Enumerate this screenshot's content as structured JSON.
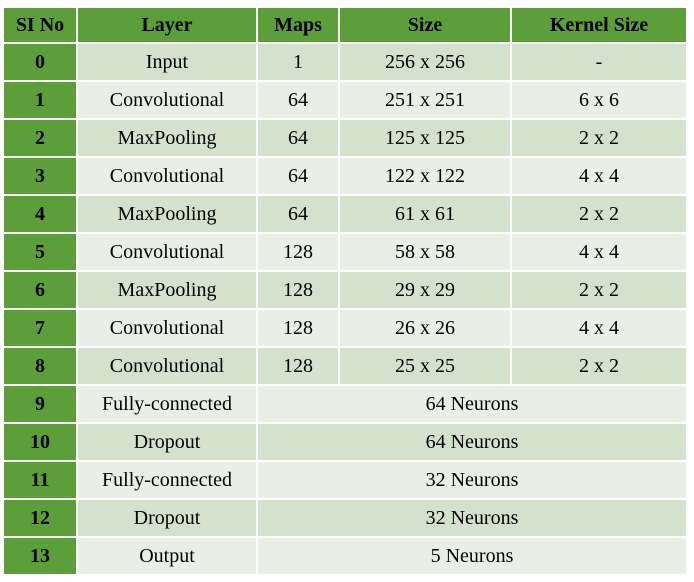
{
  "table": {
    "headers": [
      "SI No",
      "Layer",
      "Maps",
      "Size",
      "Kernel Size"
    ],
    "rows": [
      {
        "sl": "0",
        "layer": "Input",
        "maps": "1",
        "size": "256 x 256",
        "kernel": "-"
      },
      {
        "sl": "1",
        "layer": "Convolutional",
        "maps": "64",
        "size": "251 x 251",
        "kernel": "6 x 6"
      },
      {
        "sl": "2",
        "layer": "MaxPooling",
        "maps": "64",
        "size": "125 x 125",
        "kernel": "2 x 2"
      },
      {
        "sl": "3",
        "layer": "Convolutional",
        "maps": "64",
        "size": "122 x 122",
        "kernel": "4 x 4"
      },
      {
        "sl": "4",
        "layer": "MaxPooling",
        "maps": "64",
        "size": "61 x 61",
        "kernel": "2 x 2"
      },
      {
        "sl": "5",
        "layer": "Convolutional",
        "maps": "128",
        "size": "58 x 58",
        "kernel": "4 x 4"
      },
      {
        "sl": "6",
        "layer": "MaxPooling",
        "maps": "128",
        "size": "29 x 29",
        "kernel": "2 x 2"
      },
      {
        "sl": "7",
        "layer": "Convolutional",
        "maps": "128",
        "size": "26 x 26",
        "kernel": "4 x 4"
      },
      {
        "sl": "8",
        "layer": "Convolutional",
        "maps": "128",
        "size": "25 x 25",
        "kernel": "2 x 2"
      },
      {
        "sl": "9",
        "layer": "Fully-connected",
        "neurons": "64 Neurons"
      },
      {
        "sl": "10",
        "layer": "Dropout",
        "neurons": "64 Neurons"
      },
      {
        "sl": "11",
        "layer": "Fully-connected",
        "neurons": "32 Neurons"
      },
      {
        "sl": "12",
        "layer": "Dropout",
        "neurons": "32 Neurons"
      },
      {
        "sl": "13",
        "layer": "Output",
        "neurons": "5 Neurons"
      }
    ]
  },
  "colors": {
    "header_green": "#5b9e3a",
    "row_dark": "#d3e1cd",
    "row_light": "#e9efe6"
  }
}
